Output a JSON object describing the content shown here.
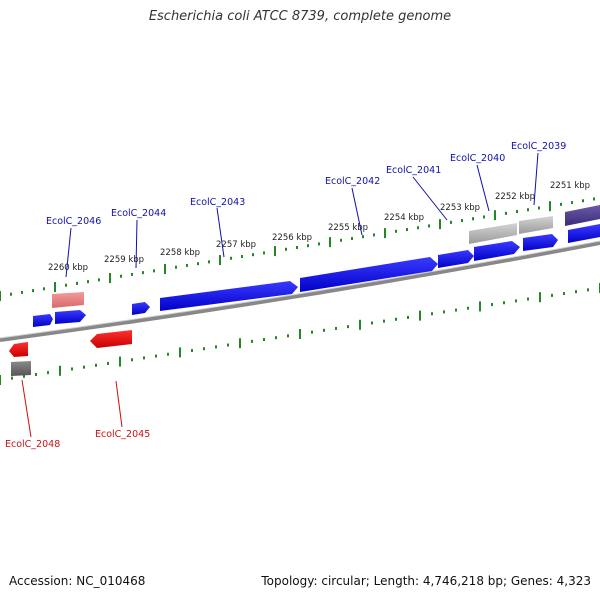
{
  "title": "Escherichia coli ATCC 8739, complete genome",
  "footer": {
    "accession": "Accession: NC_010468",
    "summary": "Topology: circular; Length: 4,746,218 bp; Genes: 4,323"
  },
  "colors": {
    "forward_gene": "#1010ee",
    "reverse_gene": "#ee1010",
    "gene_label_forward": "#1010aa",
    "gene_label_reverse": "#cc1010",
    "tick": "#228822",
    "backbone": "#888888"
  },
  "ticks": [
    "2260 kbp",
    "2259 kbp",
    "2258 kbp",
    "2257 kbp",
    "2256 kbp",
    "2255 kbp",
    "2254 kbp",
    "2253 kbp",
    "2252 kbp",
    "2251 kbp"
  ],
  "gene_labels": {
    "top": [
      "EcolC_2046",
      "EcolC_2044",
      "EcolC_2043",
      "EcolC_2042",
      "EcolC_2041",
      "EcolC_2040",
      "EcolC_2039"
    ],
    "bottom": [
      "EcolC_2048",
      "EcolC_2045"
    ]
  }
}
